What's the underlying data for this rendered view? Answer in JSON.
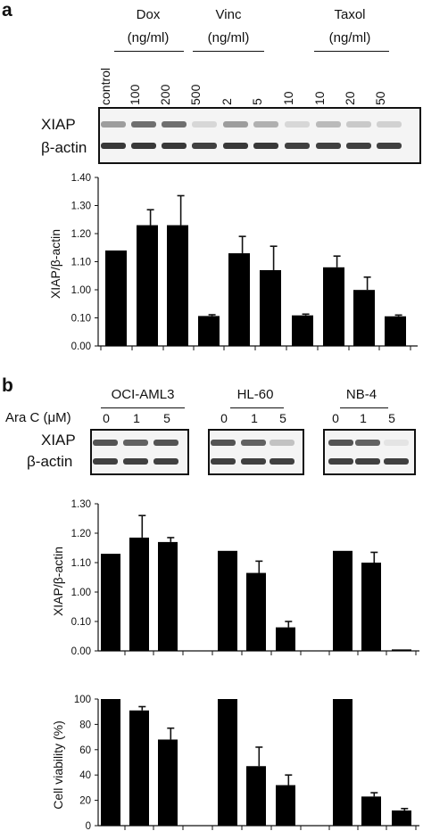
{
  "panel_a": {
    "letter": "a",
    "groups": [
      {
        "name": "Dox",
        "unit": "(ng/ml)"
      },
      {
        "name": "Vinc",
        "unit": "(ng/ml)"
      },
      {
        "name": "Taxol",
        "unit": "(ng/ml)"
      }
    ],
    "lanes": [
      "control",
      "100",
      "200",
      "500",
      "2",
      "5",
      "10",
      "10",
      "20",
      "50"
    ],
    "blot_labels": [
      "XIAP",
      "β-actin"
    ],
    "band_intensity": {
      "xiap": [
        0.55,
        0.75,
        0.75,
        0.2,
        0.55,
        0.45,
        0.2,
        0.4,
        0.3,
        0.25
      ],
      "actin": [
        0.9,
        0.9,
        0.9,
        0.85,
        0.9,
        0.9,
        0.85,
        0.85,
        0.85,
        0.85
      ]
    }
  },
  "panel_b": {
    "letter": "b",
    "ara_label": "Ara C (μM)",
    "cell_lines": [
      "OCI-AML3",
      "HL-60",
      "NB-4"
    ],
    "doses": [
      "0",
      "1",
      "5"
    ],
    "blot_labels": [
      "XIAP",
      "β-actin"
    ],
    "band_intensity": {
      "xiap": [
        [
          0.85,
          0.8,
          0.85
        ],
        [
          0.85,
          0.8,
          0.35
        ],
        [
          0.85,
          0.8,
          0.08
        ]
      ],
      "actin": [
        [
          0.85,
          0.85,
          0.85
        ],
        [
          0.85,
          0.85,
          0.85
        ],
        [
          0.85,
          0.85,
          0.85
        ]
      ]
    }
  },
  "chart_data": [
    {
      "type": "bar",
      "ylabel": "XIAP/β-actin",
      "yticks": [
        "0.00",
        "0.10",
        "1.00",
        "1.10",
        "1.20",
        "1.30",
        "1.40"
      ],
      "categories": [
        "control",
        "100",
        "200",
        "500",
        "2",
        "5",
        "10",
        "10",
        "20",
        "50"
      ],
      "values": [
        1.14,
        1.23,
        1.23,
        0.16,
        1.13,
        1.07,
        0.18,
        1.08,
        0.995,
        0.15
      ],
      "errors": [
        0,
        0.055,
        0.105,
        0.04,
        0.06,
        0.085,
        0.04,
        0.04,
        0.05,
        0.04
      ],
      "color": "#000000"
    },
    {
      "type": "bar",
      "ylabel": "XIAP/β-actin",
      "yticks": [
        "0.00",
        "0.10",
        "1.00",
        "1.10",
        "1.20",
        "1.30"
      ],
      "categories": [
        "OCI-AML3 0",
        "OCI-AML3 1",
        "OCI-AML3 5",
        "HL-60 0",
        "HL-60 1",
        "HL-60 5",
        "NB-4 0",
        "NB-4 1",
        "NB-4 5"
      ],
      "values": [
        1.13,
        1.185,
        1.17,
        1.14,
        1.065,
        0.08,
        1.14,
        1.1,
        0.005
      ],
      "errors": [
        0,
        0.075,
        0.015,
        0,
        0.04,
        0.02,
        0,
        0.035,
        0
      ],
      "color": "#000000"
    },
    {
      "type": "bar",
      "ylabel": "Cell viability (%)",
      "yticks": [
        "0",
        "20",
        "40",
        "60",
        "80",
        "100"
      ],
      "ylim": [
        0,
        100
      ],
      "categories": [
        "OCI-AML3 0",
        "OCI-AML3 1",
        "OCI-AML3 5",
        "HL-60 0",
        "HL-60 1",
        "HL-60 5",
        "NB-4 0",
        "NB-4 1",
        "NB-4 5"
      ],
      "values": [
        100,
        91,
        68,
        100,
        47,
        32,
        100,
        23,
        12
      ],
      "errors": [
        0,
        3,
        9,
        0,
        15,
        8,
        0,
        3,
        1.5
      ],
      "color": "#000000"
    }
  ]
}
